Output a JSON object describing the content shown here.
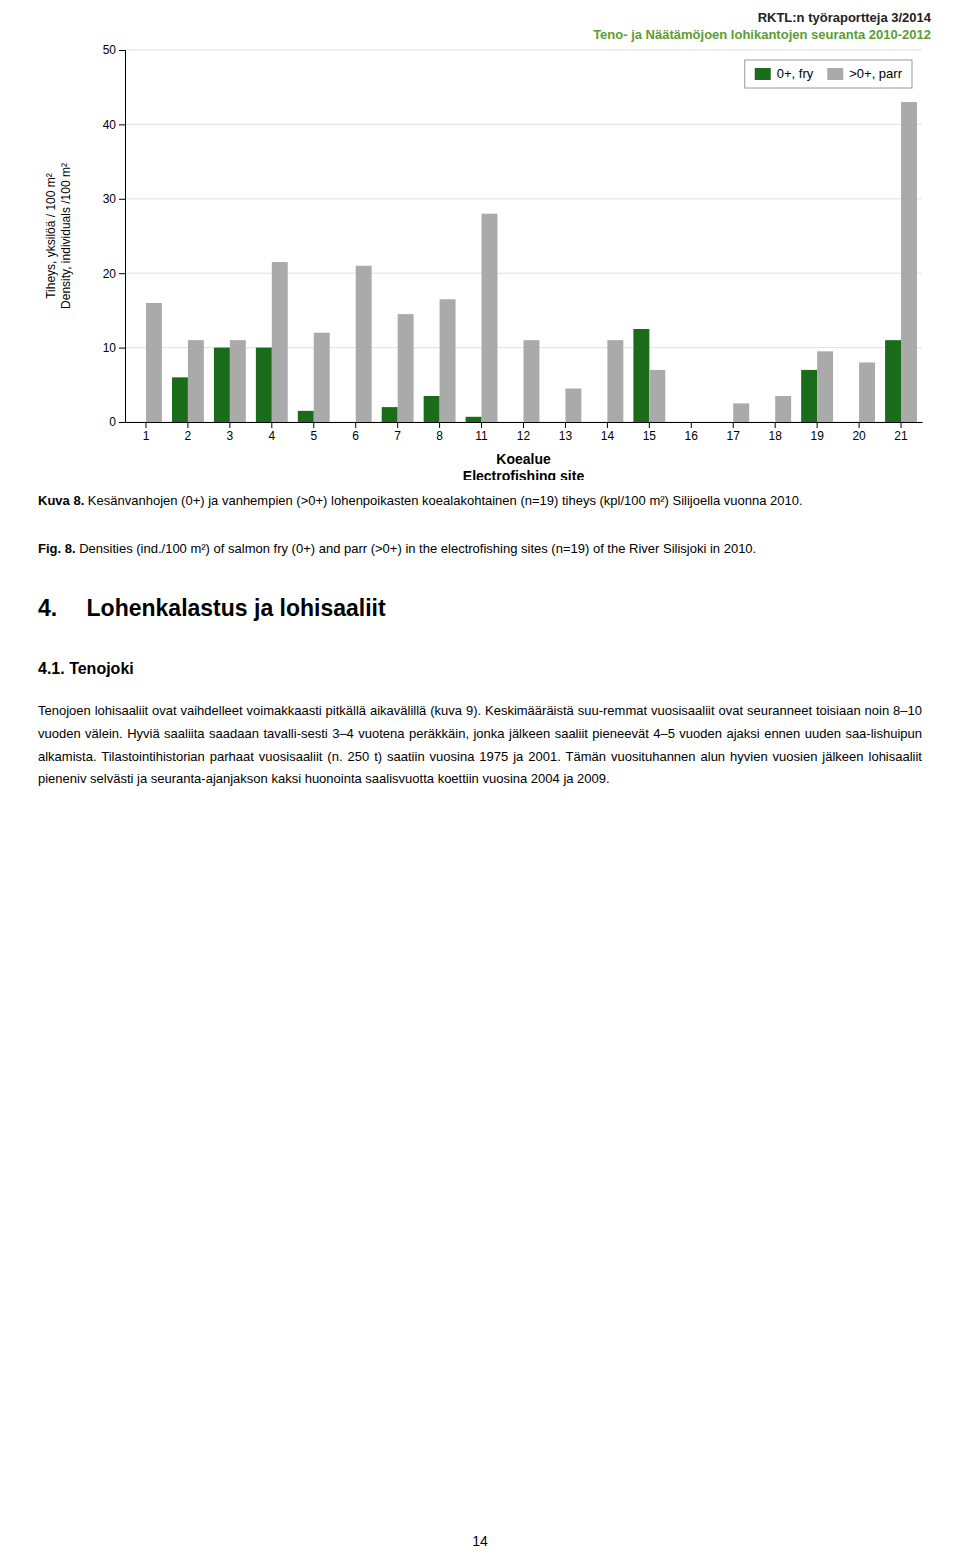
{
  "chart_data": {
    "type": "bar",
    "categories": [
      1,
      2,
      3,
      4,
      5,
      6,
      7,
      8,
      11,
      12,
      13,
      14,
      15,
      16,
      17,
      18,
      19,
      20,
      21
    ],
    "series": [
      {
        "name": "0+, fry",
        "color": "#1a6b1a",
        "values": [
          0,
          6,
          10,
          10,
          1.5,
          0,
          2,
          3.5,
          0.7,
          0,
          0,
          0,
          12.5,
          0,
          0,
          0,
          7,
          0,
          11
        ]
      },
      {
        "name": ">0+, parr",
        "color": "#aaaaaa",
        "values": [
          16,
          11,
          11,
          21.5,
          12,
          21,
          14.5,
          16.5,
          28,
          11,
          4.5,
          11,
          7,
          0,
          2.5,
          3.5,
          9.5,
          8,
          43
        ]
      }
    ],
    "y_label": [
      "Tiheys, yksilöä / 100 m²",
      "Density, individuals /100 m²"
    ],
    "x_label": [
      "Koealue",
      "Electrofishing site"
    ],
    "ylim": [
      0,
      50
    ],
    "yticks": [
      0,
      10,
      20,
      30,
      40,
      50
    ],
    "grid": true,
    "legend": "upper right"
  },
  "page": {
    "header": [
      {
        "text": "RKTL:n työraportteja 3/2014",
        "color": "#222222"
      },
      {
        "text": "Teno- ja Näätämöjoen lohikantojen seuranta 2010-2012",
        "color": "#5a9e32"
      }
    ],
    "caption_fi": {
      "bold": "Kuva 8.",
      "rest": " Kesänvanhojen (0+) ja vanhempien (>0+) lohenpoikasten koealakohtainen (n=19) tiheys (kpl/100 m²) Silijoella vuonna 2010."
    },
    "caption_en": {
      "bold": "Fig. 8.",
      "rest": " Densities (ind./100 m²) of salmon fry (0+) and parr (>0+) in the electrofishing sites (n=19) of the River Silisjoki in 2010."
    },
    "section_title": "4.  Lohenkalastus ja lohisaaliit",
    "subsection_title": "4.1. Tenojoki",
    "body_text": "Tenojoen lohisaaliit ovat vaihdelleet voimakkaasti pitkällä aikavälillä (kuva 9). Keskimääräistä suu-remmat vuosisaaliit ovat seuranneet toisiaan noin 8–10 vuoden välein. Hyviä saaliita saadaan tavalli-sesti 3–4 vuotena peräkkäin, jonka jälkeen saaliit pieneevät 4–5 vuoden ajaksi ennen uuden saa-lishuipun alkamista. Tilastointihistorian parhaat vuosisaaliit (n. 250 t) saatiin vuosina 1975 ja 2001. Tämän vuosituhannen alun hyvien vuosien jälkeen lohisaaliit pieneniv selvästi ja seuranta-ajanjakson kaksi huonointa saalisvuotta koettiin vuosina 2004 ja 2009.",
    "page_number": "14"
  }
}
